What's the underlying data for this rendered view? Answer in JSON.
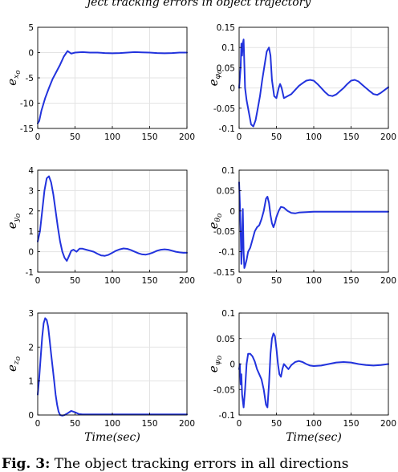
{
  "figure": {
    "header_fragment": "ject tracking errors in object trajectory",
    "caption_label": "Fig. 3:",
    "caption_text": "The object tracking errors in all directions"
  },
  "chart_data": [
    {
      "type": "line",
      "ylabel": "e",
      "ylabel_sub": "x",
      "ylabel_subsub": "o",
      "xlabel": "",
      "xlim": [
        0,
        200
      ],
      "ylim": [
        -15,
        5
      ],
      "xticks": [
        0,
        50,
        100,
        150,
        200
      ],
      "yticks": [
        -15,
        -10,
        -5,
        0,
        5
      ],
      "xtick_labels": [
        "0",
        "50",
        "100",
        "150",
        "200"
      ],
      "ytick_labels": [
        "-15",
        "-10",
        "-5",
        "0",
        "5"
      ],
      "series": [
        {
          "x": [
            0,
            2,
            5,
            10,
            15,
            20,
            25,
            30,
            35,
            40,
            45,
            50,
            60,
            70,
            80,
            90,
            100,
            110,
            120,
            130,
            140,
            150,
            160,
            170,
            180,
            190,
            200
          ],
          "y": [
            -14,
            -13.5,
            -11.5,
            -9,
            -7,
            -5.2,
            -3.8,
            -2.4,
            -0.8,
            0.3,
            -0.2,
            0.0,
            0.1,
            0.0,
            0.0,
            -0.1,
            -0.15,
            -0.1,
            0.0,
            0.1,
            0.05,
            0.0,
            -0.1,
            -0.15,
            -0.1,
            0.0,
            0.0
          ]
        }
      ]
    },
    {
      "type": "line",
      "ylabel": "e",
      "ylabel_sub": "φ",
      "ylabel_subsub": "o",
      "xlabel": "",
      "xlim": [
        0,
        200
      ],
      "ylim": [
        -0.1,
        0.15
      ],
      "xticks": [
        0,
        50,
        100,
        150,
        200
      ],
      "yticks": [
        -0.1,
        -0.05,
        0,
        0.05,
        0.1,
        0.15
      ],
      "xtick_labels": [
        "0",
        "50",
        "100",
        "150",
        "200"
      ],
      "ytick_labels": [
        "-0.1",
        "-0.05",
        "0",
        "0.05",
        "0.1",
        "0.15"
      ],
      "series": [
        {
          "x": [
            0,
            2,
            3,
            4,
            5,
            6,
            7,
            8,
            10,
            13,
            16,
            19,
            22,
            25,
            28,
            31,
            34,
            37,
            40,
            42,
            44,
            47,
            50,
            53,
            55,
            57,
            60,
            65,
            70,
            75,
            80,
            85,
            90,
            95,
            100,
            105,
            110,
            115,
            120,
            125,
            130,
            135,
            140,
            145,
            150,
            155,
            160,
            165,
            170,
            175,
            180,
            185,
            190,
            195,
            200
          ],
          "y": [
            0.0,
            0.05,
            0.11,
            0.08,
            0.11,
            0.12,
            0.06,
            0.0,
            -0.03,
            -0.06,
            -0.09,
            -0.095,
            -0.08,
            -0.05,
            -0.02,
            0.02,
            0.055,
            0.09,
            0.1,
            0.08,
            0.02,
            -0.02,
            -0.025,
            0.0,
            0.01,
            0.0,
            -0.025,
            -0.02,
            -0.015,
            -0.005,
            0.005,
            0.012,
            0.018,
            0.02,
            0.018,
            0.01,
            0.0,
            -0.01,
            -0.018,
            -0.02,
            -0.016,
            -0.008,
            0.0,
            0.01,
            0.018,
            0.02,
            0.016,
            0.008,
            0.0,
            -0.008,
            -0.015,
            -0.017,
            -0.012,
            -0.005,
            0.002
          ]
        }
      ]
    },
    {
      "type": "line",
      "ylabel": "e",
      "ylabel_sub": "y",
      "ylabel_subsub": "o",
      "xlabel": "",
      "xlim": [
        0,
        200
      ],
      "ylim": [
        -1,
        4
      ],
      "xticks": [
        0,
        50,
        100,
        150,
        200
      ],
      "yticks": [
        -1,
        0,
        1,
        2,
        3,
        4
      ],
      "xtick_labels": [
        "0",
        "50",
        "100",
        "150",
        "200"
      ],
      "ytick_labels": [
        "-1",
        "0",
        "1",
        "2",
        "3",
        "4"
      ],
      "series": [
        {
          "x": [
            0,
            3,
            6,
            9,
            12,
            15,
            18,
            21,
            24,
            27,
            30,
            33,
            36,
            39,
            42,
            45,
            48,
            52,
            56,
            60,
            65,
            70,
            75,
            80,
            85,
            90,
            95,
            100,
            105,
            110,
            115,
            120,
            125,
            130,
            135,
            140,
            145,
            150,
            155,
            160,
            165,
            170,
            175,
            180,
            185,
            190,
            195,
            200
          ],
          "y": [
            0.5,
            1.0,
            2.0,
            3.0,
            3.6,
            3.7,
            3.4,
            2.8,
            2.0,
            1.2,
            0.5,
            0.0,
            -0.3,
            -0.45,
            -0.2,
            0.05,
            0.1,
            0.0,
            0.15,
            0.15,
            0.1,
            0.05,
            0.0,
            -0.1,
            -0.18,
            -0.2,
            -0.15,
            -0.05,
            0.05,
            0.12,
            0.16,
            0.14,
            0.08,
            0.0,
            -0.08,
            -0.13,
            -0.14,
            -0.1,
            -0.03,
            0.05,
            0.1,
            0.12,
            0.1,
            0.05,
            0.0,
            -0.03,
            -0.05,
            -0.05
          ]
        }
      ]
    },
    {
      "type": "line",
      "ylabel": "e",
      "ylabel_sub": "θ",
      "ylabel_subsub": "o",
      "xlabel": "",
      "xlim": [
        0,
        200
      ],
      "ylim": [
        -0.15,
        0.1
      ],
      "xticks": [
        0,
        50,
        100,
        150,
        200
      ],
      "yticks": [
        -0.15,
        -0.1,
        -0.05,
        0,
        0.05,
        0.1
      ],
      "xtick_labels": [
        "0",
        "50",
        "100",
        "150",
        "200"
      ],
      "ytick_labels": [
        "-0.15",
        "-0.1",
        "-0.05",
        "0",
        "0.05",
        "0.1"
      ],
      "series": [
        {
          "x": [
            0,
            1,
            2,
            3,
            4,
            5,
            6,
            7,
            8,
            10,
            12,
            15,
            18,
            21,
            24,
            27,
            30,
            33,
            36,
            38,
            40,
            42,
            44,
            46,
            48,
            50,
            53,
            56,
            60,
            65,
            70,
            75,
            80,
            90,
            100,
            120,
            140,
            160,
            180,
            200
          ],
          "y": [
            0.07,
            0.02,
            -0.05,
            -0.13,
            -0.08,
            0.005,
            -0.1,
            -0.14,
            -0.135,
            -0.12,
            -0.1,
            -0.09,
            -0.07,
            -0.05,
            -0.04,
            -0.035,
            -0.02,
            0.0,
            0.03,
            0.035,
            0.02,
            -0.01,
            -0.03,
            -0.04,
            -0.03,
            -0.015,
            0.0,
            0.01,
            0.008,
            0.0,
            -0.005,
            -0.006,
            -0.004,
            -0.003,
            -0.002,
            -0.002,
            -0.002,
            -0.002,
            -0.002,
            -0.002
          ]
        }
      ]
    },
    {
      "type": "line",
      "ylabel": "e",
      "ylabel_sub": "z",
      "ylabel_subsub": "o",
      "xlabel": "",
      "xlim": [
        0,
        200
      ],
      "ylim": [
        0,
        3
      ],
      "xticks": [
        0,
        50,
        100,
        150,
        200
      ],
      "yticks": [
        0,
        1,
        2,
        3
      ],
      "xtick_labels": [
        "0",
        "50",
        "100",
        "150",
        "200"
      ],
      "ytick_labels": [
        "0",
        "1",
        "2",
        "3"
      ],
      "series": [
        {
          "x": [
            0,
            2,
            4,
            6,
            8,
            10,
            12,
            14,
            16,
            18,
            20,
            22,
            24,
            26,
            28,
            30,
            33,
            36,
            40,
            45,
            50,
            55,
            60,
            80,
            100,
            150,
            200
          ],
          "y": [
            0.6,
            1.1,
            1.7,
            2.3,
            2.7,
            2.85,
            2.8,
            2.6,
            2.2,
            1.8,
            1.4,
            1.0,
            0.6,
            0.3,
            0.1,
            0.0,
            -0.02,
            0.0,
            0.05,
            0.12,
            0.08,
            0.03,
            0.02,
            0.02,
            0.02,
            0.02,
            0.02
          ]
        }
      ]
    },
    {
      "type": "line",
      "ylabel": "e",
      "ylabel_sub": "ψ",
      "ylabel_subsub": "o",
      "xlabel": "",
      "xlim": [
        0,
        200
      ],
      "ylim": [
        -0.1,
        0.1
      ],
      "xticks": [
        0,
        50,
        100,
        150,
        200
      ],
      "yticks": [
        -0.1,
        -0.05,
        0,
        0.05,
        0.1
      ],
      "xtick_labels": [
        "0",
        "50",
        "100",
        "150",
        "200"
      ],
      "ytick_labels": [
        "-0.1",
        "-0.05",
        "0",
        "0.05",
        "0.1"
      ],
      "series": [
        {
          "x": [
            0,
            1,
            2,
            3,
            4,
            6,
            8,
            10,
            12,
            15,
            18,
            21,
            24,
            27,
            30,
            33,
            36,
            38,
            40,
            42,
            44,
            46,
            48,
            50,
            52,
            54,
            56,
            58,
            60,
            63,
            66,
            70,
            75,
            80,
            85,
            90,
            95,
            100,
            110,
            120,
            130,
            140,
            150,
            160,
            170,
            180,
            190,
            200
          ],
          "y": [
            -0.01,
            0.0,
            -0.04,
            -0.02,
            -0.06,
            -0.085,
            -0.05,
            0.0,
            0.02,
            0.02,
            0.015,
            0.005,
            -0.01,
            -0.02,
            -0.03,
            -0.05,
            -0.08,
            -0.085,
            -0.04,
            0.02,
            0.05,
            0.06,
            0.055,
            0.03,
            0.0,
            -0.02,
            -0.025,
            -0.01,
            0.0,
            -0.005,
            -0.01,
            -0.002,
            0.004,
            0.006,
            0.004,
            0.0,
            -0.003,
            -0.004,
            -0.003,
            0.0,
            0.003,
            0.004,
            0.003,
            0.0,
            -0.002,
            -0.003,
            -0.002,
            0.0
          ]
        }
      ]
    }
  ],
  "xaxis_bottom_label": "Time(sec)"
}
